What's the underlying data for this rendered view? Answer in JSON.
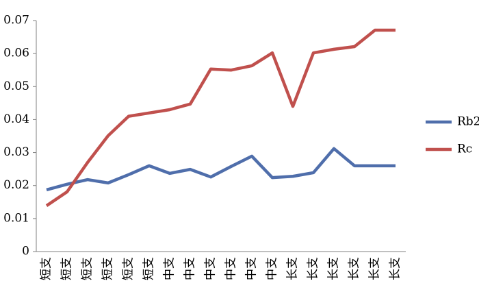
{
  "chart_data": {
    "type": "line",
    "categories": [
      "短支",
      "短支",
      "短支",
      "短支",
      "短支",
      "短支",
      "中支",
      "中支",
      "中支",
      "中支",
      "中支",
      "中支",
      "长支",
      "长支",
      "长支",
      "长支",
      "长支",
      "长支"
    ],
    "series": [
      {
        "name": "Rb2",
        "color": "#4f6eab",
        "values": [
          0.0187,
          0.0204,
          0.0218,
          0.0208,
          0.0233,
          0.026,
          0.0237,
          0.0249,
          0.0226,
          0.0258,
          0.0289,
          0.0224,
          0.0228,
          0.0239,
          0.0312,
          0.026,
          0.026,
          0.026
        ]
      },
      {
        "name": "Rc",
        "color": "#c0504d",
        "values": [
          0.0139,
          0.0181,
          0.027,
          0.0351,
          0.041,
          0.042,
          0.043,
          0.0447,
          0.0553,
          0.055,
          0.0563,
          0.0602,
          0.044,
          0.0602,
          0.0613,
          0.0621,
          0.0671,
          0.0671
        ]
      }
    ],
    "ylim": [
      0,
      0.07
    ],
    "yticks": [
      0,
      0.01,
      0.02,
      0.03,
      0.04,
      0.05,
      0.06,
      0.07
    ],
    "grid": false,
    "legend": "right"
  }
}
